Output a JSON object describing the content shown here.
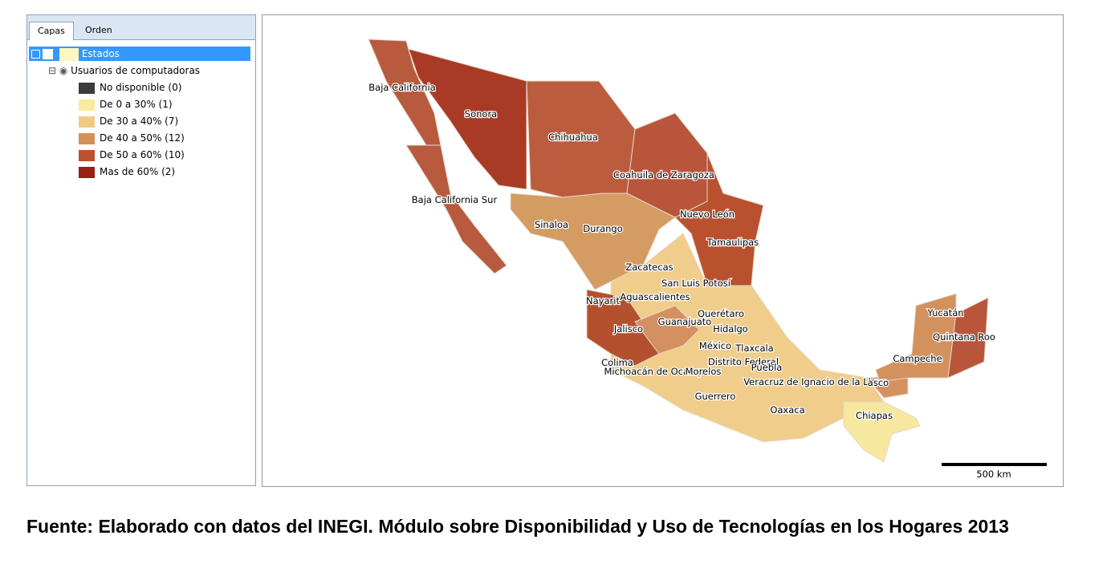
{
  "tabs": [
    "Capas",
    "Orden"
  ],
  "tree": {
    "layer": "Estados",
    "field": "Usuarios de computadoras",
    "legend": [
      {
        "label": "No disponible (0)",
        "color": "#3c3c3c"
      },
      {
        "label": "De 0 a 30% (1)",
        "color": "#f8eb9c"
      },
      {
        "label": "De 30 a 40% (7)",
        "color": "#efcb85"
      },
      {
        "label": "De 40 a 50% (12)",
        "color": "#d3915a"
      },
      {
        "label": "De 50 a 60% (10)",
        "color": "#b9512f"
      },
      {
        "label": "Mas de 60% (2)",
        "color": "#9a1f12"
      }
    ]
  },
  "map": {
    "labels": [
      "Baja California",
      "Sonora",
      "Chihuahua",
      "Coahuila de Zaragoza",
      "Baja California Sur",
      "Nuevo León",
      "Sinaloa",
      "Durango",
      "Tamaulipas",
      "Zacatecas",
      "San Luis Potosí",
      "Nayarit",
      "Aguascalientes",
      "Querétaro",
      "Guanajuato",
      "Jalisco",
      "Hidalgo",
      "México",
      "Tlaxcala",
      "Colima",
      "Distrito Federal",
      "Puebla",
      "Michoacán de Ocampo",
      "Morelos",
      "Veracruz de Ignacio de la Llave",
      "asco",
      "Guerrero",
      "Oaxaca",
      "Chiapas",
      "Yucatán",
      "Quintana Roo",
      "Campeche"
    ],
    "scale": "500 km"
  },
  "footer": "Fuente: Elaborado con datos del INEGI. Módulo sobre Disponibilidad y Uso de Tecnologías en los Hogares 2013"
}
